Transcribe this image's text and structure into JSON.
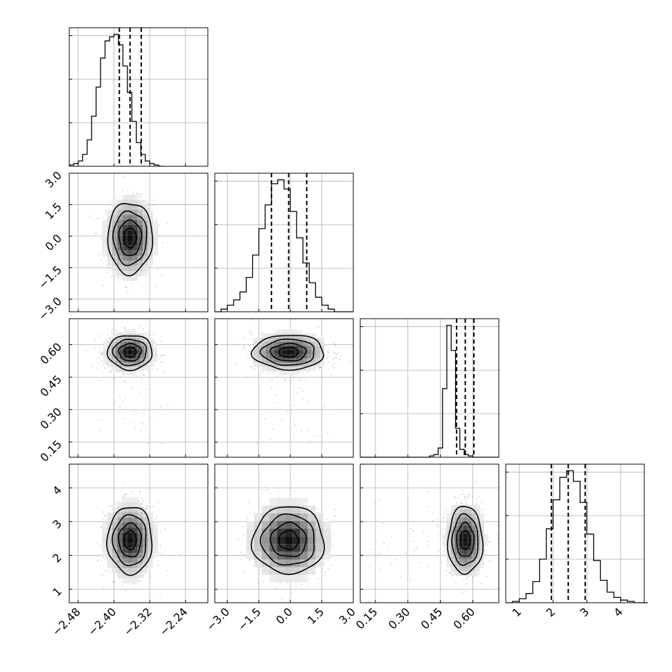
{
  "chart_data": {
    "type": "corner",
    "grid": true,
    "params": [
      {
        "range": [
          -2.5,
          -2.19
        ],
        "ticks": [
          -2.48,
          -2.4,
          -2.32,
          -2.24
        ],
        "tick_labels": [
          "−2.48",
          "−2.40",
          "−2.32",
          "−2.24"
        ],
        "mean": -2.364,
        "sd": 0.025,
        "quantiles": [
          -2.388,
          -2.364,
          -2.339
        ]
      },
      {
        "range": [
          -3.6,
          3.0
        ],
        "ticks": [
          -3.0,
          -1.5,
          0.0,
          1.5,
          3.0
        ],
        "tick_labels": [
          "−3.0",
          "−1.5",
          "0.0",
          "1.5",
          "3.0"
        ],
        "mean": -0.08,
        "sd": 0.85,
        "quantiles": [
          -0.9,
          -0.08,
          0.78
        ]
      },
      {
        "range": [
          0.08,
          0.72
        ],
        "ticks": [
          0.15,
          0.3,
          0.45,
          0.6
        ],
        "tick_labels": [
          "0.15",
          "0.30",
          "0.45",
          "0.60"
        ],
        "mean": 0.565,
        "sd": 0.04,
        "quantiles": [
          0.525,
          0.565,
          0.605
        ]
      },
      {
        "range": [
          0.6,
          4.7
        ],
        "ticks": [
          1,
          2,
          3,
          4
        ],
        "tick_labels": [
          "1",
          "2",
          "3",
          "4"
        ],
        "mean": 2.45,
        "sd": 0.5,
        "quantiles": [
          1.95,
          2.45,
          2.95
        ]
      }
    ],
    "histograms": [
      {
        "param": 0,
        "edges_start": -2.5,
        "bin_width": 0.01,
        "counts": [
          1,
          2,
          4,
          9,
          20,
          38,
          60,
          82,
          95,
          98,
          100,
          92,
          76,
          56,
          34,
          18,
          9,
          4,
          2,
          1,
          0
        ]
      },
      {
        "param": 1,
        "edges_start": -3.6,
        "bin_width": 0.3,
        "counts": [
          0,
          2,
          5,
          9,
          15,
          26,
          43,
          63,
          81,
          97,
          100,
          93,
          76,
          56,
          37,
          22,
          11,
          5,
          2,
          0,
          0,
          0
        ]
      },
      {
        "param": 2,
        "edges_start": 0.08,
        "bin_width": 0.02,
        "counts": [
          0,
          0,
          0,
          0,
          0,
          0,
          0,
          0,
          0,
          0,
          0,
          0,
          0,
          0,
          0,
          0,
          1,
          2,
          7,
          52,
          100,
          81,
          22,
          6,
          2,
          1,
          0,
          0,
          0,
          0,
          0,
          0
        ]
      },
      {
        "param": 3,
        "edges_start": 0.6,
        "bin_width": 0.2,
        "counts": [
          0,
          1,
          3,
          7,
          16,
          33,
          56,
          78,
          95,
          100,
          92,
          76,
          52,
          32,
          17,
          8,
          4,
          2,
          1,
          0,
          0
        ]
      }
    ],
    "pairs": [
      {
        "x": 0,
        "y": 1
      },
      {
        "x": 0,
        "y": 2
      },
      {
        "x": 1,
        "y": 2
      },
      {
        "x": 0,
        "y": 3
      },
      {
        "x": 1,
        "y": 3
      },
      {
        "x": 2,
        "y": 3
      }
    ]
  }
}
